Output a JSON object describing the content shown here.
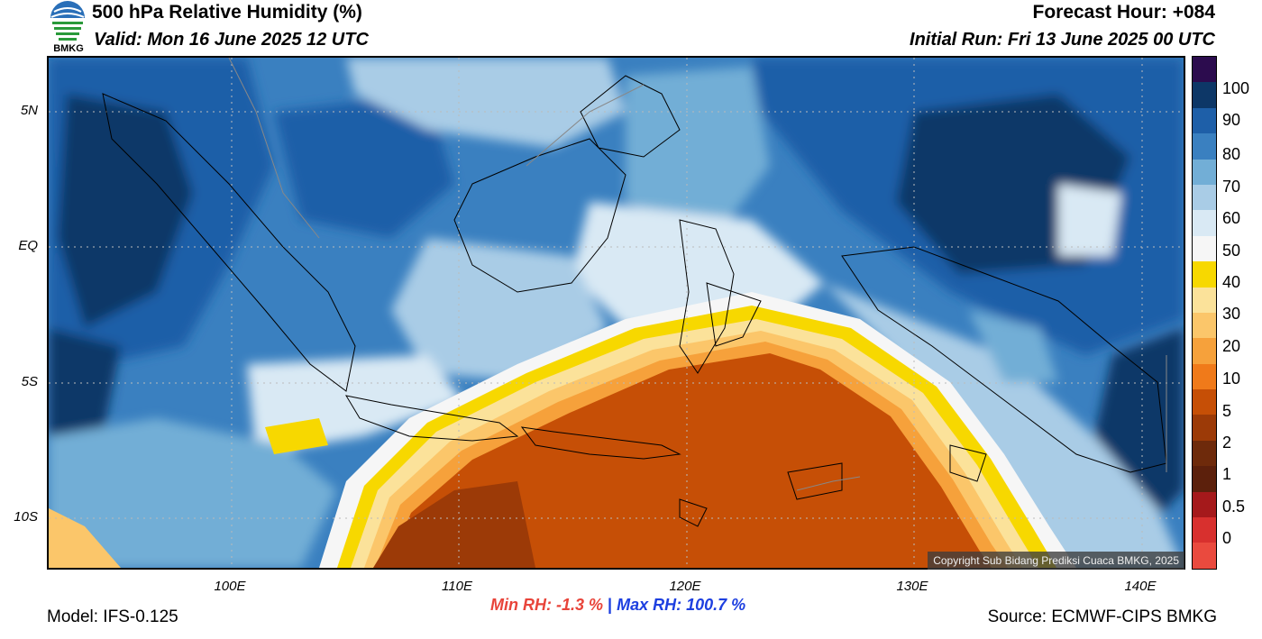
{
  "header": {
    "title": "500 hPa Relative Humidity (%)",
    "valid": "Valid: Mon 16 June 2025 12 UTC",
    "forecast_hour": "Forecast Hour: +084",
    "initial_run": "Initial Run: Fri 13 June 2025 00 UTC"
  },
  "logo": {
    "text": "BMKG",
    "icon": "bmkg-logo-icon"
  },
  "axes": {
    "lat_labels": [
      "5N",
      "EQ",
      "5S",
      "10S"
    ],
    "lon_labels": [
      "100E",
      "110E",
      "120E",
      "130E",
      "140E"
    ]
  },
  "colorbar": {
    "labels": [
      "100",
      "90",
      "80",
      "70",
      "60",
      "50",
      "40",
      "30",
      "20",
      "10",
      "5",
      "2",
      "1",
      "0.5",
      "0"
    ],
    "colors": [
      "#2c0c4e",
      "#0d3767",
      "#1e5fa8",
      "#3a80c0",
      "#72aed6",
      "#a9cce6",
      "#d9e9f4",
      "#f6f6f6",
      "#f7d800",
      "#fbe29a",
      "#fbc66a",
      "#f6a13b",
      "#f07a1a",
      "#c64f06",
      "#9c3a07",
      "#6e2a0b",
      "#5c200c",
      "#a5191b",
      "#d8302e",
      "#ea4a3e"
    ]
  },
  "copyright": "Copyright Sub Bidang Prediksi Cuaca BMKG, 2025",
  "stats": {
    "min_rh": "Min RH:  -1.3 %",
    "separator": "|",
    "max_rh": "Max RH: 100.7 %"
  },
  "footer": {
    "model": "Model: IFS-0.125",
    "source": "Source: ECMWF-CIPS BMKG"
  }
}
